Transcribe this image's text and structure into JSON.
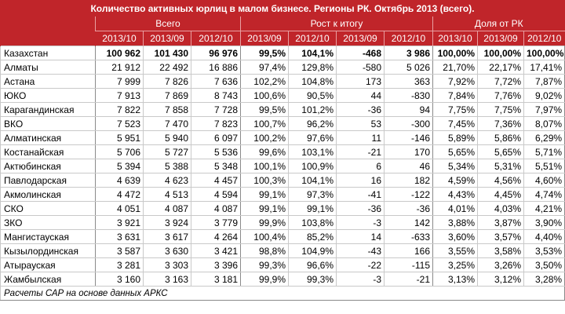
{
  "title": "Количество активных юрлиц в малом бизнесе. Регионы РК. Октябрь 2013 (всего).",
  "groups": {
    "total": "Всего",
    "growth": "Рост к итогу",
    "share": "Доля от РК"
  },
  "years": [
    "2013/10",
    "2013/09",
    "2012/10",
    "2013/09",
    "2012/10",
    "2013/09",
    "2012/10",
    "2013/10",
    "2013/09",
    "2012/10"
  ],
  "rows": [
    {
      "region": "Казахстан",
      "v": [
        "100 962",
        "101 430",
        "96 976",
        "99,5%",
        "104,1%",
        "-468",
        "3 986",
        "100,00%",
        "100,00%",
        "100,00%"
      ]
    },
    {
      "region": "Алматы",
      "v": [
        "21 912",
        "22 492",
        "16 886",
        "97,4%",
        "129,8%",
        "-580",
        "5 026",
        "21,70%",
        "22,17%",
        "17,41%"
      ]
    },
    {
      "region": "Астана",
      "v": [
        "7 999",
        "7 826",
        "7 636",
        "102,2%",
        "104,8%",
        "173",
        "363",
        "7,92%",
        "7,72%",
        "7,87%"
      ]
    },
    {
      "region": "ЮКО",
      "v": [
        "7 913",
        "7 869",
        "8 743",
        "100,6%",
        "90,5%",
        "44",
        "-830",
        "7,84%",
        "7,76%",
        "9,02%"
      ]
    },
    {
      "region": "Карагандинская",
      "v": [
        "7 822",
        "7 858",
        "7 728",
        "99,5%",
        "101,2%",
        "-36",
        "94",
        "7,75%",
        "7,75%",
        "7,97%"
      ]
    },
    {
      "region": "ВКО",
      "v": [
        "7 523",
        "7 470",
        "7 823",
        "100,7%",
        "96,2%",
        "53",
        "-300",
        "7,45%",
        "7,36%",
        "8,07%"
      ]
    },
    {
      "region": "Алматинская",
      "v": [
        "5 951",
        "5 940",
        "6 097",
        "100,2%",
        "97,6%",
        "11",
        "-146",
        "5,89%",
        "5,86%",
        "6,29%"
      ]
    },
    {
      "region": "Костанайская",
      "v": [
        "5 706",
        "5 727",
        "5 536",
        "99,6%",
        "103,1%",
        "-21",
        "170",
        "5,65%",
        "5,65%",
        "5,71%"
      ]
    },
    {
      "region": "Актюбинская",
      "v": [
        "5 394",
        "5 388",
        "5 348",
        "100,1%",
        "100,9%",
        "6",
        "46",
        "5,34%",
        "5,31%",
        "5,51%"
      ]
    },
    {
      "region": "Павлодарская",
      "v": [
        "4 639",
        "4 623",
        "4 457",
        "100,3%",
        "104,1%",
        "16",
        "182",
        "4,59%",
        "4,56%",
        "4,60%"
      ]
    },
    {
      "region": "Акмолинская",
      "v": [
        "4 472",
        "4 513",
        "4 594",
        "99,1%",
        "97,3%",
        "-41",
        "-122",
        "4,43%",
        "4,45%",
        "4,74%"
      ]
    },
    {
      "region": "СКО",
      "v": [
        "4 051",
        "4 087",
        "4 087",
        "99,1%",
        "99,1%",
        "-36",
        "-36",
        "4,01%",
        "4,03%",
        "4,21%"
      ]
    },
    {
      "region": "ЗКО",
      "v": [
        "3 921",
        "3 924",
        "3 779",
        "99,9%",
        "103,8%",
        "-3",
        "142",
        "3,88%",
        "3,87%",
        "3,90%"
      ]
    },
    {
      "region": "Мангистауская",
      "v": [
        "3 631",
        "3 617",
        "4 264",
        "100,4%",
        "85,2%",
        "14",
        "-633",
        "3,60%",
        "3,57%",
        "4,40%"
      ]
    },
    {
      "region": "Кызылординская",
      "v": [
        "3 587",
        "3 630",
        "3 421",
        "98,8%",
        "104,9%",
        "-43",
        "166",
        "3,55%",
        "3,58%",
        "3,53%"
      ]
    },
    {
      "region": "Атырауская",
      "v": [
        "3 281",
        "3 303",
        "3 396",
        "99,3%",
        "96,6%",
        "-22",
        "-115",
        "3,25%",
        "3,26%",
        "3,50%"
      ]
    },
    {
      "region": "Жамбылская",
      "v": [
        "3 160",
        "3 163",
        "3 181",
        "99,9%",
        "99,3%",
        "-3",
        "-21",
        "3,13%",
        "3,12%",
        "3,28%"
      ]
    }
  ],
  "footnote": "Расчеты САР на основе данных АРКС",
  "colors": {
    "header_bg": "#c0252a",
    "header_text": "#ffffff",
    "grid": "#c9c9c9"
  }
}
